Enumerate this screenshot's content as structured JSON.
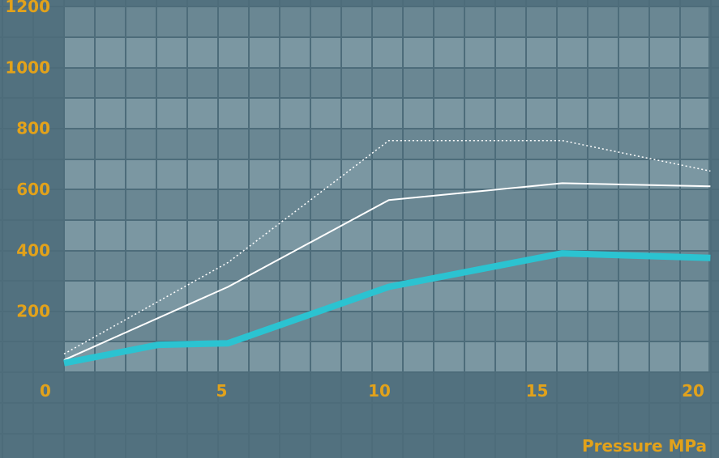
{
  "colors": {
    "background": "#52717f",
    "plot_band_dark": "#6a8793",
    "plot_band_light": "#7b97a2",
    "grid": "#4d6c7a",
    "tick_text": "#e2a21b",
    "series_cyan": "#2bc3d1",
    "series_white": "#ffffff"
  },
  "chart_data": {
    "type": "line",
    "title": "",
    "xlabel": "Pressure MPa",
    "ylabel": "",
    "xlim": [
      0,
      20.5
    ],
    "ylim": [
      0,
      1200
    ],
    "x_ticks": [
      0,
      5,
      10,
      15,
      20
    ],
    "y_ticks": [
      200,
      400,
      600,
      800,
      1000,
      1200
    ],
    "x_tick_labels": [
      "0",
      "5",
      "10",
      "15",
      "20"
    ],
    "y_tick_labels": [
      "200",
      "400",
      "600",
      "800",
      "1000",
      "1200"
    ],
    "grid": true,
    "legend": "none",
    "series": [
      {
        "style": "dotted",
        "color": "#ffffff",
        "width": 1.5,
        "points": [
          [
            0,
            60
          ],
          [
            5.2,
            360
          ],
          [
            10.3,
            760
          ],
          [
            15.8,
            760
          ],
          [
            20.5,
            660
          ]
        ]
      },
      {
        "style": "solid",
        "color": "#ffffff",
        "width": 2,
        "points": [
          [
            0,
            40
          ],
          [
            5.2,
            280
          ],
          [
            10.3,
            565
          ],
          [
            15.8,
            620
          ],
          [
            20.5,
            610
          ]
        ]
      },
      {
        "style": "solid",
        "color": "#2bc3d1",
        "width": 8,
        "points": [
          [
            0,
            30
          ],
          [
            3,
            90
          ],
          [
            5.2,
            95
          ],
          [
            10.3,
            280
          ],
          [
            15.8,
            390
          ],
          [
            20.5,
            375
          ]
        ]
      }
    ]
  }
}
